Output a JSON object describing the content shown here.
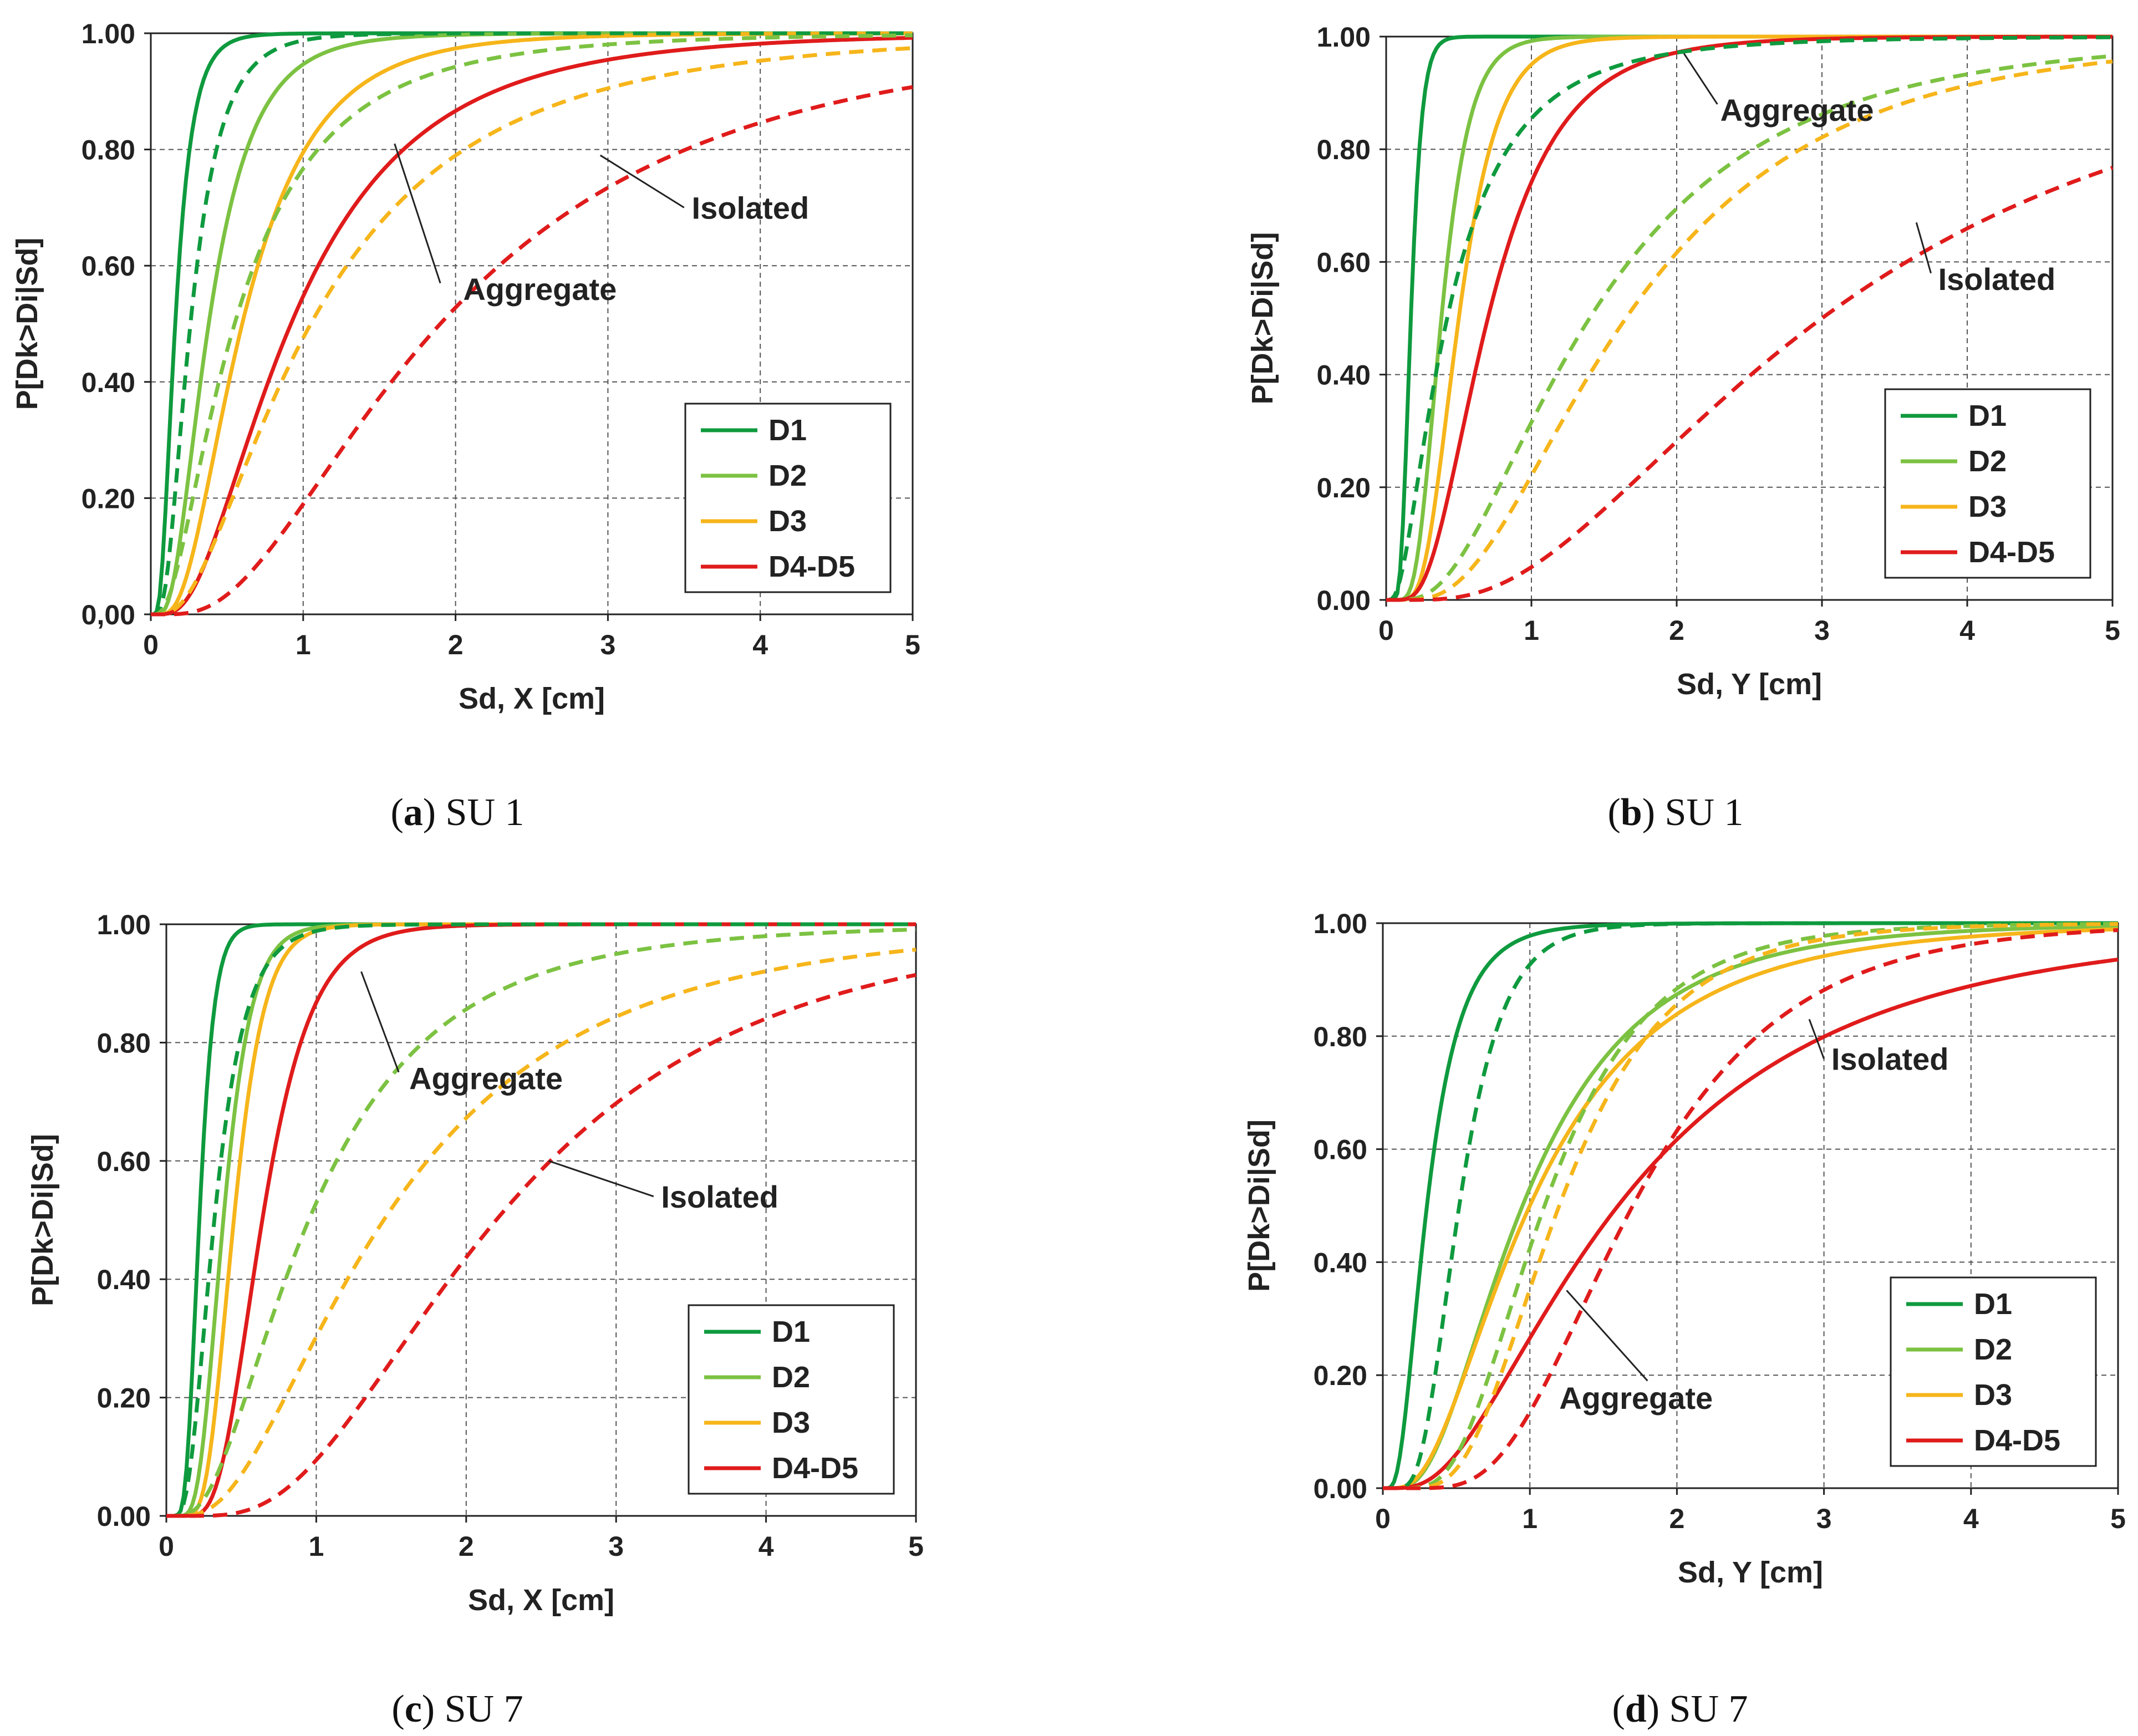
{
  "figure": {
    "colors": {
      "D1": "#0e9a3e",
      "D2": "#7cc242",
      "D3": "#f6b51a",
      "D4-D5": "#e01b1b"
    }
  },
  "chart_data": [
    {
      "type": "line",
      "panel": "a",
      "caption": {
        "letter": "a",
        "rest": ") SU 1"
      },
      "xlabel": "Sd, X [cm]",
      "ylabel": "P[Dk>Di|Sd]",
      "xlim": [
        0,
        5
      ],
      "ylim": [
        0,
        1
      ],
      "xticks": [
        "0",
        "1",
        "2",
        "3",
        "4",
        "5"
      ],
      "yticks": [
        "0,00",
        "0.20",
        "0.40",
        "0.60",
        "0.80",
        "1.00"
      ],
      "legend": {
        "placement": "bottom-right",
        "entries": [
          "D1",
          "D2",
          "D3",
          "D4-D5"
        ]
      },
      "series": [
        {
          "name": "D1",
          "style": "Aggregate (solid)",
          "color": "#0e9a3e",
          "median": 0.16,
          "beta": 0.55
        },
        {
          "name": "D2",
          "style": "Aggregate (solid)",
          "color": "#7cc242",
          "median": 0.38,
          "beta": 0.6
        },
        {
          "name": "D3",
          "style": "Aggregate (solid)",
          "color": "#f6b51a",
          "median": 0.6,
          "beta": 0.62
        },
        {
          "name": "D4-D5",
          "style": "Aggregate (solid)",
          "color": "#e01b1b",
          "median": 0.92,
          "beta": 0.7
        },
        {
          "name": "D1",
          "style": "Isolated (dashed)",
          "color": "#0e9a3e",
          "median": 0.26,
          "beta": 0.6
        },
        {
          "name": "D2",
          "style": "Isolated (dashed)",
          "color": "#7cc242",
          "median": 0.55,
          "beta": 0.82
        },
        {
          "name": "D3",
          "style": "Isolated (dashed)",
          "color": "#f6b51a",
          "median": 1.05,
          "beta": 0.8
        },
        {
          "name": "D4-D5",
          "style": "Isolated (dashed)",
          "color": "#e01b1b",
          "median": 1.9,
          "beta": 0.73
        }
      ],
      "annotations": [
        {
          "text": "Isolated",
          "x": 3.55,
          "y": 0.7,
          "line": [
            [
              3.5,
              0.7
            ],
            [
              2.95,
              0.79
            ]
          ]
        },
        {
          "text": "Aggregate",
          "x": 2.05,
          "y": 0.56,
          "line": [
            [
              1.9,
              0.57
            ],
            [
              1.6,
              0.81
            ]
          ]
        }
      ]
    },
    {
      "type": "line",
      "panel": "b",
      "caption": {
        "letter": "b",
        "rest": ") SU 1"
      },
      "xlabel": "Sd, Y [cm]",
      "ylabel": "P[Dk>Di|Sd]",
      "xlim": [
        0,
        5
      ],
      "ylim": [
        0,
        1
      ],
      "xticks": [
        "0",
        "1",
        "2",
        "3",
        "4",
        "5"
      ],
      "yticks": [
        "0.00",
        "0.20",
        "0.40",
        "0.60",
        "0.80",
        "1.00"
      ],
      "legend": {
        "placement": "bottom-right",
        "entries": [
          "D1",
          "D2",
          "D3",
          "D4-D5"
        ]
      },
      "series": [
        {
          "name": "D1",
          "style": "Aggregate (solid)",
          "color": "#0e9a3e",
          "median": 0.17,
          "beta": 0.35
        },
        {
          "name": "D2",
          "style": "Aggregate (solid)",
          "color": "#7cc242",
          "median": 0.38,
          "beta": 0.4
        },
        {
          "name": "D3",
          "style": "Aggregate (solid)",
          "color": "#f6b51a",
          "median": 0.5,
          "beta": 0.42
        },
        {
          "name": "D4-D5",
          "style": "Aggregate (solid)",
          "color": "#e01b1b",
          "median": 0.7,
          "beta": 0.55
        },
        {
          "name": "D1",
          "style": "Isolated (dashed)",
          "color": "#0e9a3e",
          "median": 0.42,
          "beta": 0.82
        },
        {
          "name": "D2",
          "style": "Isolated (dashed)",
          "color": "#7cc242",
          "median": 1.4,
          "beta": 0.7
        },
        {
          "name": "D3",
          "style": "Isolated (dashed)",
          "color": "#f6b51a",
          "median": 1.65,
          "beta": 0.65
        },
        {
          "name": "D4-D5",
          "style": "Isolated (dashed)",
          "color": "#e01b1b",
          "median": 3.0,
          "beta": 0.7
        }
      ],
      "annotations": [
        {
          "text": "Aggregate",
          "x": 2.3,
          "y": 0.87,
          "line": [
            [
              2.28,
              0.88
            ],
            [
              2.05,
              0.97
            ]
          ]
        },
        {
          "text": "Isolated",
          "x": 3.8,
          "y": 0.57,
          "line": [
            [
              3.75,
              0.58
            ],
            [
              3.65,
              0.67
            ]
          ]
        }
      ]
    },
    {
      "type": "line",
      "panel": "c",
      "caption": {
        "letter": "c",
        "rest": ") SU 7"
      },
      "xlabel": "Sd, X [cm]",
      "ylabel": "P[Dk>Di|Sd]",
      "xlim": [
        0,
        5
      ],
      "ylim": [
        0,
        1
      ],
      "xticks": [
        "0",
        "1",
        "2",
        "3",
        "4",
        "5"
      ],
      "yticks": [
        "0.00",
        "0.20",
        "0.40",
        "0.60",
        "0.80",
        "1.00"
      ],
      "legend": {
        "placement": "bottom-right",
        "entries": [
          "D1",
          "D2",
          "D3",
          "D4-D5"
        ]
      },
      "series": [
        {
          "name": "D1",
          "style": "Aggregate (solid)",
          "color": "#0e9a3e",
          "median": 0.22,
          "beta": 0.35
        },
        {
          "name": "D2",
          "style": "Aggregate (solid)",
          "color": "#7cc242",
          "median": 0.38,
          "beta": 0.38
        },
        {
          "name": "D3",
          "style": "Aggregate (solid)",
          "color": "#f6b51a",
          "median": 0.45,
          "beta": 0.35
        },
        {
          "name": "D4-D5",
          "style": "Aggregate (solid)",
          "color": "#e01b1b",
          "median": 0.64,
          "beta": 0.4
        },
        {
          "name": "D1",
          "style": "Isolated (dashed)",
          "color": "#0e9a3e",
          "median": 0.32,
          "beta": 0.5
        },
        {
          "name": "D2",
          "style": "Isolated (dashed)",
          "color": "#7cc242",
          "median": 0.95,
          "beta": 0.7
        },
        {
          "name": "D3",
          "style": "Isolated (dashed)",
          "color": "#f6b51a",
          "median": 1.45,
          "beta": 0.72
        },
        {
          "name": "D4-D5",
          "style": "Isolated (dashed)",
          "color": "#e01b1b",
          "median": 2.2,
          "beta": 0.6
        }
      ],
      "annotations": [
        {
          "text": "Aggregate",
          "x": 1.62,
          "y": 0.74,
          "line": [
            [
              1.55,
              0.75
            ],
            [
              1.3,
              0.92
            ]
          ]
        },
        {
          "text": "Isolated",
          "x": 3.3,
          "y": 0.54,
          "line": [
            [
              3.25,
              0.54
            ],
            [
              2.55,
              0.6
            ]
          ]
        }
      ]
    },
    {
      "type": "line",
      "panel": "d",
      "caption": {
        "letter": "d",
        "rest": ") SU 7"
      },
      "xlabel": "Sd, Y [cm]",
      "ylabel": "P[Dk>Di|Sd]",
      "xlim": [
        0,
        5
      ],
      "ylim": [
        0,
        1
      ],
      "xticks": [
        "0",
        "1",
        "2",
        "3",
        "4",
        "5"
      ],
      "yticks": [
        "0.00",
        "0.20",
        "0.40",
        "0.60",
        "0.80",
        "1.00"
      ],
      "legend": {
        "placement": "bottom-right",
        "entries": [
          "D1",
          "D2",
          "D3",
          "D4-D5"
        ]
      },
      "series": [
        {
          "name": "D1",
          "style": "Aggregate (solid)",
          "color": "#0e9a3e",
          "median": 0.3,
          "beta": 0.6
        },
        {
          "name": "D2",
          "style": "Aggregate (solid)",
          "color": "#7cc242",
          "median": 0.95,
          "beta": 0.65
        },
        {
          "name": "D3",
          "style": "Aggregate (solid)",
          "color": "#f6b51a",
          "median": 1.0,
          "beta": 0.7
        },
        {
          "name": "D4-D5",
          "style": "Aggregate (solid)",
          "color": "#e01b1b",
          "median": 1.6,
          "beta": 0.75
        },
        {
          "name": "D1",
          "style": "Isolated (dashed)",
          "color": "#0e9a3e",
          "median": 0.52,
          "beta": 0.45
        },
        {
          "name": "D2",
          "style": "Isolated (dashed)",
          "color": "#7cc242",
          "median": 1.1,
          "beta": 0.5
        },
        {
          "name": "D3",
          "style": "Isolated (dashed)",
          "color": "#f6b51a",
          "median": 1.2,
          "beta": 0.48
        },
        {
          "name": "D4-D5",
          "style": "Isolated (dashed)",
          "color": "#e01b1b",
          "median": 1.7,
          "beta": 0.48
        }
      ],
      "annotations": [
        {
          "text": "Isolated",
          "x": 3.05,
          "y": 0.76,
          "line": [
            [
              3.0,
              0.76
            ],
            [
              2.9,
              0.83
            ]
          ]
        },
        {
          "text": "Aggregate",
          "x": 1.2,
          "y": 0.16,
          "line": [
            [
              1.8,
              0.19
            ],
            [
              1.25,
              0.35
            ]
          ]
        }
      ]
    }
  ]
}
